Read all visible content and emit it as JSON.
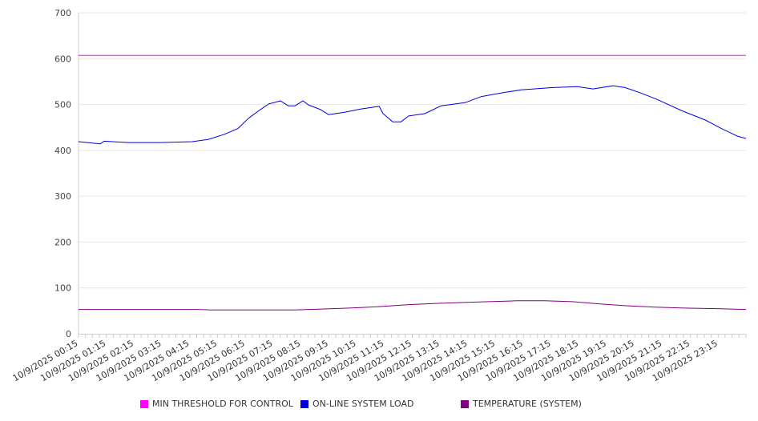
{
  "chart_data": {
    "type": "line",
    "title": "",
    "xlabel": "",
    "ylabel": "",
    "ylim": [
      0,
      700
    ],
    "yticks": [
      0,
      100,
      200,
      300,
      400,
      500,
      600,
      700
    ],
    "x_unit": "hours since 10/9/2025 00:00",
    "xlim": [
      0.25,
      24.25
    ],
    "grid": true,
    "legend_position": "bottom",
    "xtick_labels": [
      "10/9/2025 00:15",
      "10/9/2025 01:15",
      "10/9/2025 02:15",
      "10/9/2025 03:15",
      "10/9/2025 04:15",
      "10/9/2025 05:15",
      "10/9/2025 06:15",
      "10/9/2025 07:15",
      "10/9/2025 08:15",
      "10/9/2025 09:15",
      "10/9/2025 10:15",
      "10/9/2025 11:15",
      "10/9/2025 12:15",
      "10/9/2025 13:15",
      "10/9/2025 14:15",
      "10/9/2025 15:15",
      "10/9/2025 16:15",
      "10/9/2025 17:15",
      "10/9/2025 18:15",
      "10/9/2025 19:15",
      "10/9/2025 20:15",
      "10/9/2025 21:15",
      "10/9/2025 22:15",
      "10/9/2025 23:15"
    ],
    "series": [
      {
        "name": "MIN THRESHOLD FOR CONTROL",
        "color": "#ff00ff",
        "x": [
          0.25,
          24.25
        ],
        "y": [
          607,
          607
        ]
      },
      {
        "name": "ON-LINE SYSTEM LOAD",
        "color": "#0000dd",
        "x": [
          0.25,
          1.03,
          1.17,
          2.04,
          3.19,
          4.34,
          4.92,
          5.5,
          5.99,
          6.36,
          6.79,
          7.08,
          7.51,
          7.8,
          8.03,
          8.32,
          8.52,
          8.95,
          9.24,
          9.82,
          10.39,
          11.06,
          11.2,
          11.55,
          11.84,
          12.12,
          12.7,
          13.28,
          14.14,
          14.72,
          15.44,
          16.16,
          17.31,
          18.18,
          18.75,
          19.47,
          19.9,
          20.48,
          21.06,
          21.92,
          22.79,
          23.36,
          23.94,
          24.25
        ],
        "y": [
          419,
          414,
          420,
          417,
          417,
          419,
          424,
          435,
          448,
          470,
          489,
          501,
          508,
          497,
          497,
          508,
          499,
          489,
          478,
          483,
          490,
          496,
          480,
          462,
          462,
          475,
          480,
          497,
          504,
          517,
          525,
          532,
          537,
          539,
          534,
          541,
          537,
          525,
          511,
          487,
          466,
          448,
          431,
          426
        ]
      },
      {
        "name": "TEMPERATURE (SYSTEM)",
        "color": "#800080",
        "x": [
          0.25,
          4.5,
          5,
          6,
          8,
          9,
          10,
          11,
          12,
          13,
          14,
          15,
          16,
          17,
          18,
          19,
          20,
          21,
          22,
          23,
          24.25
        ],
        "y": [
          53,
          53,
          52,
          52,
          52,
          54,
          56,
          59,
          63,
          66,
          68,
          70,
          72,
          72,
          70,
          65,
          61,
          58,
          56,
          55,
          53
        ]
      }
    ]
  }
}
